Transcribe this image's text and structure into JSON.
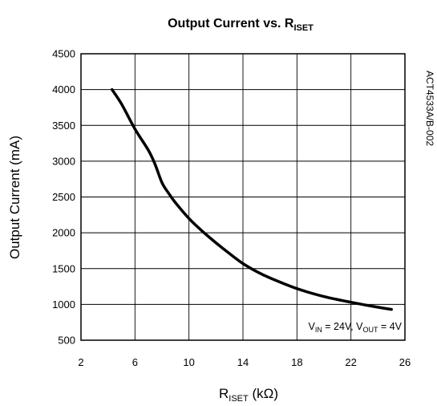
{
  "chart_data": {
    "type": "line",
    "title": {
      "main": "Output Current vs. R",
      "sub": "ISET"
    },
    "xlabel": {
      "main": "R",
      "sub": "ISET",
      "unit": " (kΩ)"
    },
    "ylabel": "Output Current (mA)",
    "xlim": [
      2,
      26
    ],
    "ylim": [
      500,
      4500
    ],
    "xticks": [
      "2",
      "6",
      "10",
      "14",
      "18",
      "22",
      "26"
    ],
    "yticks": [
      "500",
      "1000",
      "1500",
      "2000",
      "2500",
      "3000",
      "3500",
      "4000",
      "4500"
    ],
    "grid": true,
    "annotation": {
      "v_in_main": "V",
      "v_in_sub": "IN",
      "v_in_value": " = 24V, ",
      "v_out_main": "V",
      "v_out_sub": "OUT",
      "v_out_value": " = 4V"
    },
    "side_label": "ACT4533A/B-002",
    "series": [
      {
        "x": [
          4.3,
          5.0,
          6.0,
          7.0,
          7.5,
          8.0,
          8.5,
          9.0,
          10.0,
          11.0,
          12.0,
          13.0,
          14.0,
          15.0,
          16.0,
          18.0,
          20.0,
          22.0,
          24.0,
          25.0
        ],
        "y": [
          4000,
          3800,
          3450,
          3150,
          2950,
          2700,
          2550,
          2420,
          2200,
          2020,
          1860,
          1710,
          1570,
          1460,
          1370,
          1220,
          1110,
          1030,
          960,
          930
        ],
        "color": "#000000"
      }
    ]
  }
}
